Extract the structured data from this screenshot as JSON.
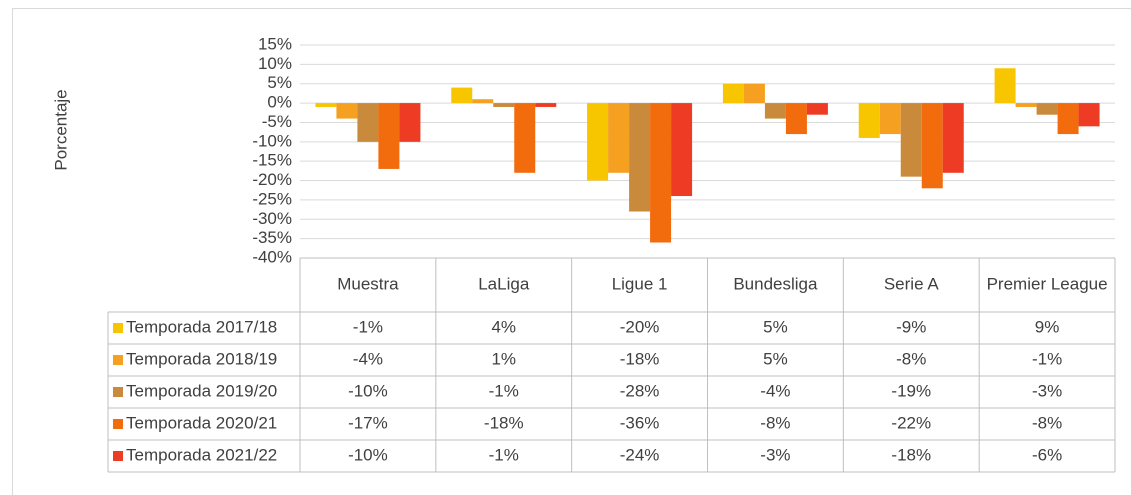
{
  "chart_data": {
    "type": "bar",
    "y_label": "Porcentaje",
    "categories": [
      "Muestra",
      "LaLiga",
      "Ligue 1",
      "Bundesliga",
      "Serie A",
      "Premier League"
    ],
    "series": [
      {
        "name": "Temporada 2017/18",
        "color": "#f7c600",
        "values": [
          -1,
          4,
          -20,
          5,
          -9,
          9
        ],
        "value_labels": [
          "-1%",
          "4%",
          "-20%",
          "5%",
          "-9%",
          "9%"
        ]
      },
      {
        "name": "Temporada 2018/19",
        "color": "#f5a020",
        "values": [
          -4,
          1,
          -18,
          5,
          -8,
          -1
        ],
        "value_labels": [
          "-4%",
          "1%",
          "-18%",
          "5%",
          "-8%",
          "-1%"
        ]
      },
      {
        "name": "Temporada 2019/20",
        "color": "#c98a3c",
        "values": [
          -10,
          -1,
          -28,
          -4,
          -19,
          -3
        ],
        "value_labels": [
          "-10%",
          "-1%",
          "-28%",
          "-4%",
          "-19%",
          "-3%"
        ]
      },
      {
        "name": "Temporada 2020/21",
        "color": "#f26b0c",
        "values": [
          -17,
          -18,
          -36,
          -8,
          -22,
          -8
        ],
        "value_labels": [
          "-17%",
          "-18%",
          "-36%",
          "-8%",
          "-22%",
          "-8%"
        ]
      },
      {
        "name": "Temporada 2021/22",
        "color": "#ee3b24",
        "values": [
          -10,
          -1,
          -24,
          -3,
          -18,
          -6
        ],
        "value_labels": [
          "-10%",
          "-1%",
          "-24%",
          "-3%",
          "-18%",
          "-6%"
        ]
      }
    ],
    "ylim": [
      -40,
      15
    ],
    "yticks": [
      {
        "value": -40,
        "label": "-40%"
      },
      {
        "value": -35,
        "label": "-35%"
      },
      {
        "value": -30,
        "label": "-30%"
      },
      {
        "value": -25,
        "label": "-25%"
      },
      {
        "value": -20,
        "label": "-20%"
      },
      {
        "value": -15,
        "label": "-15%"
      },
      {
        "value": -10,
        "label": "-10%"
      },
      {
        "value": -5,
        "label": "-5%"
      },
      {
        "value": 0,
        "label": "0%"
      },
      {
        "value": 5,
        "label": "5%"
      },
      {
        "value": 10,
        "label": "10%"
      },
      {
        "value": 15,
        "label": "15%"
      }
    ],
    "grid": true
  }
}
